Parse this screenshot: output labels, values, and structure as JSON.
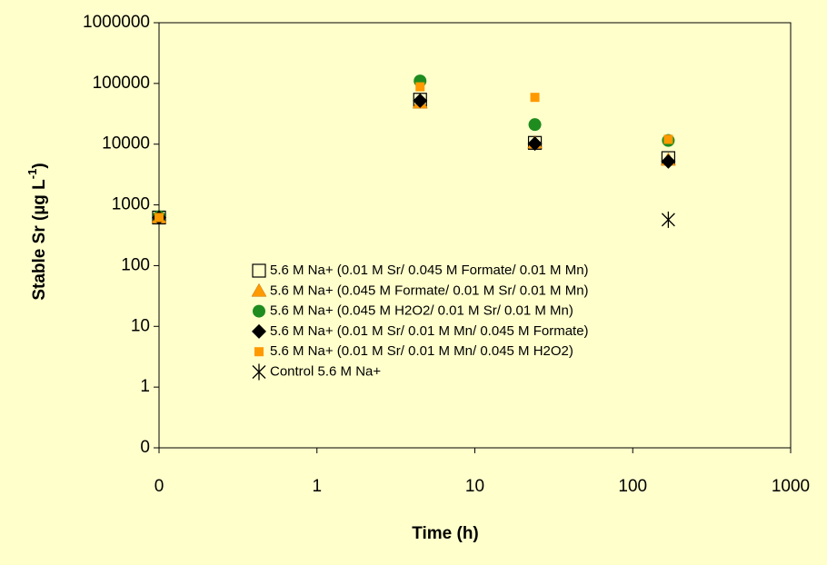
{
  "chart_data": {
    "type": "scatter",
    "log_x": true,
    "log_y": true,
    "x_label": "Time (h)",
    "y_label": "Stable Sr (µg L",
    "y_label_sup": "-1",
    "y_label_end": ")",
    "xlim": [
      0.1,
      1000
    ],
    "xticks": [
      {
        "value": 0.1,
        "label": "0"
      },
      1,
      10,
      100,
      1000
    ],
    "ylim": [
      0.1,
      1000000
    ],
    "yticks": [
      {
        "value": 0.1,
        "label": "0"
      },
      1,
      10,
      100,
      1000,
      10000,
      100000,
      1000000
    ],
    "series": [
      {
        "name": "5.6 M Na+ (0.01 M Sr/ 0.045 M Formate/ 0.01 M Mn)",
        "marker": "open-square",
        "color": "#000000",
        "x": [
          0.1,
          4.5,
          24,
          168
        ],
        "values": [
          620,
          54000,
          10500,
          5900
        ]
      },
      {
        "name": "5.6 M Na+ (0.045 M Formate/ 0.01 M Sr/ 0.01 M Mn)",
        "marker": "triangle",
        "color": "#ff9900",
        "x": [
          0.1,
          4.5,
          24,
          168
        ],
        "values": [
          620,
          48000,
          10500,
          5500
        ]
      },
      {
        "name": "5.6 M Na+ (0.045 M H2O2/ 0.01 M Sr/ 0.01 M Mn)",
        "marker": "circle",
        "color": "#1e8c1e",
        "x": [
          0.1,
          4.5,
          24,
          168
        ],
        "values": [
          640,
          110000,
          21000,
          11500
        ]
      },
      {
        "name": "5.6 M Na+ (0.01 M Sr/ 0.01 M Mn/ 0.045 M Formate)",
        "marker": "diamond",
        "color": "#000000",
        "x": [
          0.1,
          4.5,
          24,
          168
        ],
        "values": [
          620,
          52000,
          10200,
          5200
        ]
      },
      {
        "name": "5.6 M Na+ (0.01 M Sr/ 0.01 M Mn/ 0.045 M H2O2)",
        "marker": "square",
        "color": "#ff9900",
        "x": [
          0.1,
          4.5,
          24,
          168
        ],
        "values": [
          620,
          88000,
          59000,
          12000
        ]
      },
      {
        "name": "Control 5.6 M Na+",
        "marker": "star",
        "color": "#000000",
        "x": [
          0.1,
          4.5,
          24,
          168
        ],
        "values": [
          null,
          null,
          null,
          570
        ]
      }
    ]
  }
}
